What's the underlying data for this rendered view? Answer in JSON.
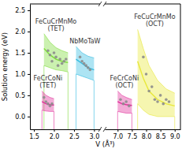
{
  "chart_data": [
    {
      "type": "scatter",
      "x_label": "V (Å³)",
      "y_label": "Solution energy (eV)",
      "xlim": [
        1.4,
        3.15
      ],
      "xticks": [
        1.5,
        {
          "value": 2,
          "label": "2.0"
        },
        2.5,
        {
          "value": 3,
          "label": "3.0"
        }
      ],
      "ylim": [
        -0.3,
        2.65
      ],
      "yticks": [
        {
          "value": 0,
          "label": "0.0"
        },
        0.5,
        {
          "value": 1,
          "label": "1.0"
        },
        1.5,
        {
          "value": 2,
          "label": "2.0"
        },
        2.5
      ],
      "series": [
        {
          "name": "FeCuCrMnMo (TET)",
          "color": "#7ddc3a",
          "x": [
            1.85,
            1.9,
            1.95,
            2.0,
            2.05,
            2.1,
            2.15,
            2.2,
            2.25,
            2.3
          ],
          "y": [
            1.55,
            1.45,
            1.3,
            1.5,
            1.4,
            1.2,
            1.35,
            1.25,
            1.3,
            1.35
          ],
          "band": {
            "x": [
              1.75,
              1.9,
              2.05,
              2.2,
              2.35
            ],
            "upper": [
              1.95,
              1.75,
              1.62,
              1.55,
              1.5
            ],
            "center": [
              1.6,
              1.45,
              1.35,
              1.3,
              1.27
            ],
            "lower": [
              1.2,
              1.15,
              1.1,
              1.08,
              1.05
            ]
          }
        },
        {
          "name": "FeCrCoNi (TET)",
          "color": "#e0309a",
          "x": [
            1.75,
            1.8,
            1.85,
            1.9,
            1.95
          ],
          "y": [
            0.45,
            0.35,
            0.3,
            0.25,
            0.3
          ],
          "band": {
            "x": [
              1.7,
              1.8,
              1.9,
              2.0
            ],
            "upper": [
              0.6,
              0.5,
              0.45,
              0.42
            ],
            "center": [
              0.35,
              0.3,
              0.28,
              0.27
            ],
            "lower": [
              0.15,
              0.13,
              0.12,
              0.12
            ]
          }
        },
        {
          "name": "NbMoTaW",
          "color": "#33bbe0",
          "x": [
            2.65,
            2.7,
            2.75,
            2.8,
            2.85,
            2.9
          ],
          "y": [
            1.4,
            1.3,
            1.25,
            1.2,
            1.15,
            1.1
          ],
          "band": {
            "x": [
              2.55,
              2.7,
              2.85,
              3.0
            ],
            "upper": [
              1.65,
              1.5,
              1.42,
              1.38
            ],
            "center": [
              1.35,
              1.25,
              1.15,
              1.1
            ],
            "lower": [
              1.0,
              0.95,
              0.9,
              0.85
            ]
          }
        }
      ]
    },
    {
      "type": "scatter",
      "tick_labels": "x",
      "xlim": [
        6.55,
        9.2
      ],
      "xticks": [
        {
          "value": 7,
          "label": "7.0"
        },
        7.5,
        {
          "value": 8,
          "label": "8.0"
        },
        8.5,
        {
          "value": 9,
          "label": "9.0"
        }
      ],
      "ylim": [
        -0.3,
        2.65
      ],
      "series": [
        {
          "name": "FeCrCoNi (OCT)",
          "color": "#e0309a",
          "x": [
            7.1,
            7.2,
            7.3,
            7.4
          ],
          "y": [
            0.4,
            0.3,
            0.35,
            0.25
          ],
          "band": {
            "x": [
              7.0,
              7.15,
              7.3,
              7.5
            ],
            "upper": [
              0.6,
              0.5,
              0.45,
              0.4
            ],
            "center": [
              0.35,
              0.3,
              0.28,
              0.26
            ],
            "lower": [
              0.12,
              0.1,
              0.08,
              0.08
            ]
          }
        },
        {
          "name": "FeCuCrMnMo (OCT)",
          "color": "#e8e83a",
          "x": [
            7.9,
            8.0,
            8.1,
            8.2,
            8.3,
            8.4,
            8.5,
            8.6,
            8.7,
            8.8
          ],
          "y": [
            1.4,
            1.0,
            0.6,
            0.7,
            0.4,
            0.35,
            0.5,
            0.3,
            0.4,
            0.35
          ],
          "band": {
            "x": [
              7.7,
              7.9,
              8.1,
              8.4,
              8.7,
              9.0
            ],
            "upper": [
              2.05,
              1.6,
              1.2,
              0.85,
              0.65,
              0.55
            ],
            "center": [
              1.3,
              0.9,
              0.6,
              0.4,
              0.3,
              0.25
            ],
            "lower": [
              0.3,
              0.15,
              0.05,
              0.0,
              0.0,
              0.0
            ]
          }
        }
      ]
    }
  ]
}
